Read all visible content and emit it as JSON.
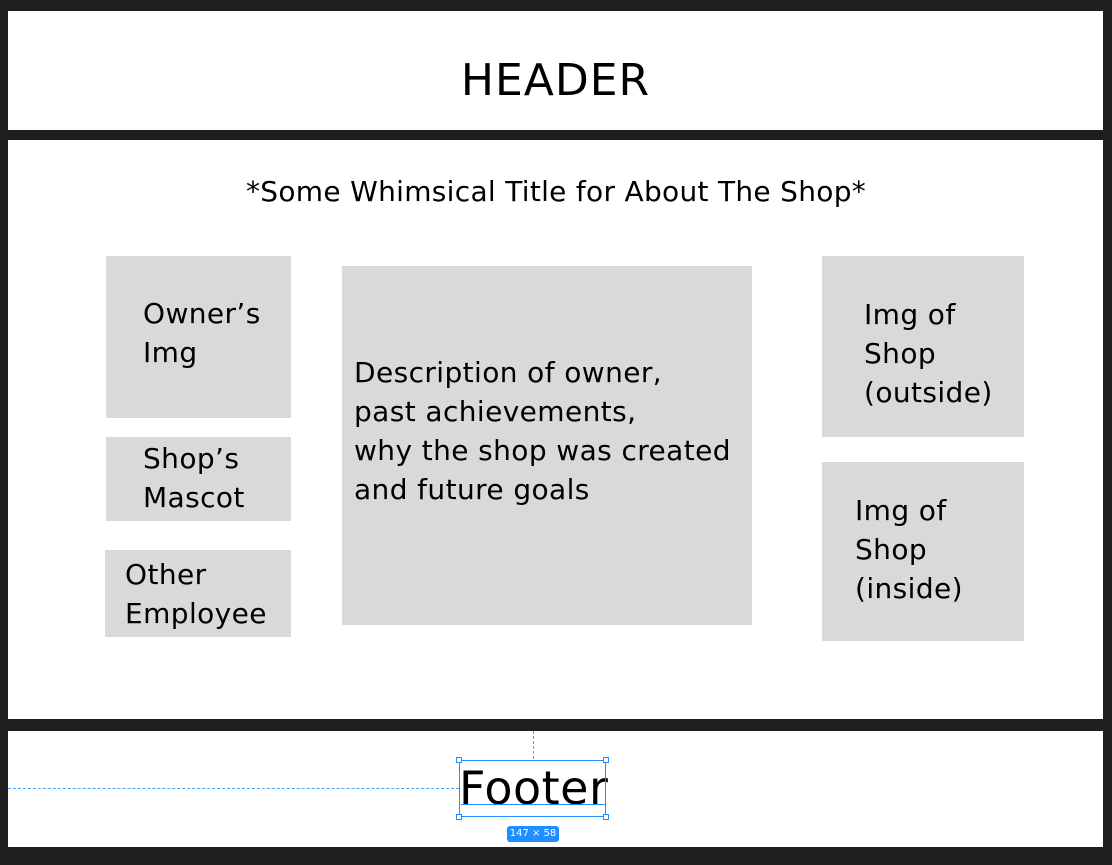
{
  "header": {
    "title": "HEADER"
  },
  "main": {
    "title": "*Some Whimsical Title for About The Shop*",
    "boxes": {
      "owners_img": "Owner’s\nImg",
      "shops_mascot": "Shop’s\nMascot",
      "other_employee": "Other\nEmployee",
      "description": "Description of owner,\npast achievements,\nwhy the shop was created\nand future goals",
      "shop_outside": "Img of\nShop\n(outside)",
      "shop_inside": "Img of\nShop\n(inside)"
    },
    "colors": {
      "placeholder_fill": "#d9d9d9"
    }
  },
  "footer": {
    "label": "Footer",
    "selection_size": "147 × 58"
  },
  "colors": {
    "canvas_background": "#1e1e1e",
    "frame_background": "#ffffff",
    "selection_accent": "#1f8fff"
  }
}
